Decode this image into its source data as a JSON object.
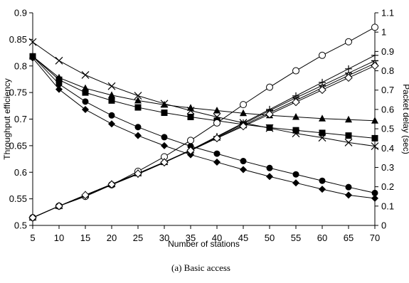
{
  "chart_data": {
    "type": "line",
    "caption": "(a) Basic access",
    "xlabel": "Number of stations",
    "ylabel_left": "Throughput efficiency",
    "ylabel_right": "Packet delay (sec)",
    "x": [
      5,
      10,
      15,
      20,
      25,
      30,
      35,
      40,
      45,
      50,
      55,
      60,
      65,
      70
    ],
    "x_ticks": [
      "5",
      "10",
      "15",
      "20",
      "25",
      "30",
      "35",
      "40",
      "45",
      "50",
      "55",
      "60",
      "65",
      "70"
    ],
    "ylim_left": [
      0.5,
      0.9
    ],
    "y_ticks_left": [
      "0.5",
      "0.55",
      "0.6",
      "0.65",
      "0.7",
      "0.75",
      "0.8",
      "0.85",
      "0.9"
    ],
    "ylim_right": [
      0,
      1.1
    ],
    "y_ticks_right": [
      "0",
      "0.1",
      "0.2",
      "0.3",
      "0.4",
      "0.5",
      "0.6",
      "0.7",
      "0.8",
      "0.9",
      "1",
      "1.1"
    ],
    "grid": false,
    "legend": "none",
    "series": [
      {
        "marker": "x",
        "axis": "left",
        "values": [
          0.845,
          0.81,
          0.783,
          0.762,
          0.744,
          0.729,
          0.716,
          0.704,
          0.693,
          0.683,
          0.673,
          0.665,
          0.656,
          0.649
        ]
      },
      {
        "marker": "filled-triangle",
        "axis": "left",
        "values": [
          0.818,
          0.778,
          0.758,
          0.745,
          0.735,
          0.727,
          0.721,
          0.716,
          0.711,
          0.707,
          0.704,
          0.701,
          0.699,
          0.697
        ]
      },
      {
        "marker": "filled-square",
        "axis": "left",
        "values": [
          0.818,
          0.774,
          0.75,
          0.735,
          0.722,
          0.712,
          0.704,
          0.697,
          0.69,
          0.684,
          0.679,
          0.674,
          0.669,
          0.664
        ]
      },
      {
        "marker": "filled-circle",
        "axis": "left",
        "values": [
          0.818,
          0.766,
          0.733,
          0.707,
          0.685,
          0.666,
          0.649,
          0.635,
          0.621,
          0.608,
          0.596,
          0.584,
          0.572,
          0.561
        ]
      },
      {
        "marker": "filled-diamond",
        "axis": "left",
        "values": [
          0.815,
          0.756,
          0.718,
          0.691,
          0.669,
          0.65,
          0.633,
          0.619,
          0.605,
          0.592,
          0.58,
          0.568,
          0.557,
          0.551
        ]
      },
      {
        "marker": "open-circle",
        "axis": "right",
        "values": [
          0.04,
          0.1,
          0.15,
          0.21,
          0.28,
          0.355,
          0.44,
          0.53,
          0.625,
          0.715,
          0.8,
          0.88,
          0.95,
          1.025
        ]
      },
      {
        "marker": "plus",
        "axis": "right",
        "values": [
          0.04,
          0.1,
          0.155,
          0.21,
          0.265,
          0.325,
          0.39,
          0.46,
          0.53,
          0.6,
          0.67,
          0.74,
          0.81,
          0.88
        ]
      },
      {
        "marker": "dash",
        "axis": "right",
        "values": [
          0.04,
          0.1,
          0.157,
          0.213,
          0.269,
          0.328,
          0.39,
          0.458,
          0.525,
          0.594,
          0.66,
          0.724,
          0.788,
          0.852
        ]
      },
      {
        "marker": "open-triangle",
        "axis": "right",
        "values": [
          0.04,
          0.1,
          0.157,
          0.213,
          0.269,
          0.327,
          0.388,
          0.454,
          0.518,
          0.583,
          0.647,
          0.712,
          0.776,
          0.838
        ]
      },
      {
        "marker": "open-diamond",
        "axis": "right",
        "values": [
          0.04,
          0.1,
          0.157,
          0.212,
          0.268,
          0.326,
          0.387,
          0.451,
          0.513,
          0.575,
          0.638,
          0.701,
          0.764,
          0.826
        ]
      }
    ]
  }
}
